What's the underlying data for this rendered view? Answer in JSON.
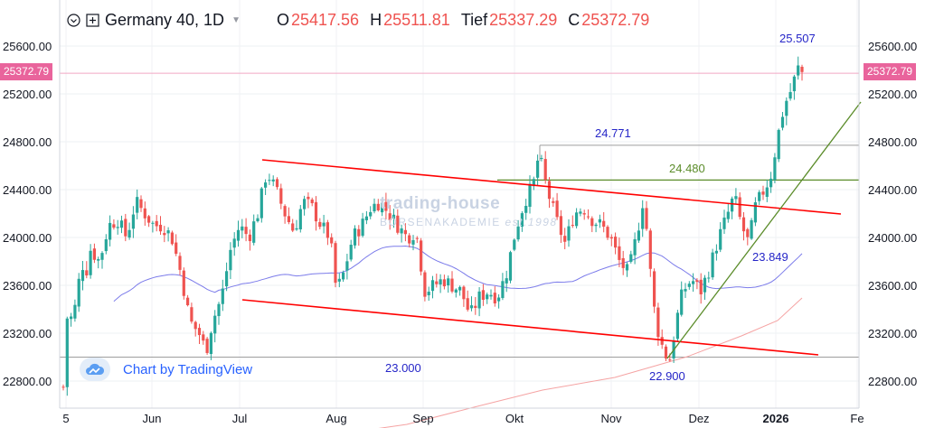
{
  "legend": {
    "symbol": "Germany 40, 1D",
    "open_label": "O",
    "open": "25417.56",
    "high_label": "H",
    "high": "25511.81",
    "low_label": "Tief",
    "low": "25337.29",
    "close_label": "C",
    "close": "25372.79",
    "eye_icon": "eye-icon",
    "add_icon": "plus-square-icon"
  },
  "watermark": {
    "line1": "trading-house",
    "line2": "BÖRSENAKADEMIE",
    "line3": "est.1998"
  },
  "branding": {
    "text": "Chart by TradingView",
    "icon": "tradingview-cloud-icon"
  },
  "current_price": "25372.79",
  "colors": {
    "up": "#26a69a",
    "down": "#ef5350",
    "channel": "#ff0000",
    "trend": "#5b8c2a",
    "ma_fast": "#7b7bea",
    "ma_slow": "#f5a3a3",
    "tag": "#e9649c",
    "level_text": "#2626c8"
  },
  "chart_data": {
    "type": "candlestick",
    "title": "Germany 40, 1D",
    "ylim": [
      22650,
      25750
    ],
    "y_ticks": [
      "22800.00",
      "23200.00",
      "23600.00",
      "24000.00",
      "24400.00",
      "24800.00",
      "25200.00",
      "25600.00"
    ],
    "x_ticks": [
      "5",
      "Jun",
      "Jul",
      "Aug",
      "Sep",
      "Okt",
      "Nov",
      "Dez",
      "2026",
      "Fe"
    ],
    "annotations": [
      "25.507",
      "24.771",
      "24.480",
      "23.849",
      "23.000",
      "22.900"
    ],
    "price_anchors": [
      [
        70,
        22750
      ],
      [
        72,
        23100
      ],
      [
        75,
        23400
      ],
      [
        80,
        23300
      ],
      [
        85,
        23500
      ],
      [
        90,
        23800
      ],
      [
        95,
        23700
      ],
      [
        100,
        23900
      ],
      [
        110,
        23800
      ],
      [
        120,
        24100
      ],
      [
        130,
        24150
      ],
      [
        140,
        24000
      ],
      [
        150,
        24300
      ],
      [
        160,
        24200
      ],
      [
        170,
        24100
      ],
      [
        180,
        24100
      ],
      [
        190,
        24000
      ],
      [
        200,
        23700
      ],
      [
        210,
        23300
      ],
      [
        220,
        23200
      ],
      [
        228,
        23050
      ],
      [
        235,
        23300
      ],
      [
        245,
        23500
      ],
      [
        255,
        23900
      ],
      [
        265,
        24100
      ],
      [
        275,
        24000
      ],
      [
        285,
        24200
      ],
      [
        295,
        24550
      ],
      [
        305,
        24400
      ],
      [
        315,
        24200
      ],
      [
        325,
        24050
      ],
      [
        335,
        24300
      ],
      [
        345,
        24250
      ],
      [
        355,
        24100
      ],
      [
        365,
        24000
      ],
      [
        372,
        23550
      ],
      [
        380,
        23700
      ],
      [
        390,
        24000
      ],
      [
        400,
        24100
      ],
      [
        410,
        24250
      ],
      [
        420,
        24300
      ],
      [
        430,
        24200
      ],
      [
        440,
        24100
      ],
      [
        450,
        24000
      ],
      [
        460,
        24050
      ],
      [
        470,
        23550
      ],
      [
        480,
        23600
      ],
      [
        490,
        23650
      ],
      [
        500,
        23600
      ],
      [
        510,
        23550
      ],
      [
        520,
        23350
      ],
      [
        530,
        23500
      ],
      [
        540,
        23550
      ],
      [
        550,
        23500
      ],
      [
        560,
        23700
      ],
      [
        570,
        24050
      ],
      [
        580,
        24300
      ],
      [
        590,
        24450
      ],
      [
        596,
        24700
      ],
      [
        605,
        24400
      ],
      [
        615,
        24150
      ],
      [
        625,
        23950
      ],
      [
        635,
        24200
      ],
      [
        645,
        24250
      ],
      [
        655,
        24150
      ],
      [
        665,
        24100
      ],
      [
        675,
        24000
      ],
      [
        685,
        23800
      ],
      [
        695,
        23700
      ],
      [
        705,
        24050
      ],
      [
        712,
        24350
      ],
      [
        718,
        23800
      ],
      [
        725,
        23300
      ],
      [
        732,
        23100
      ],
      [
        740,
        22950
      ],
      [
        748,
        23300
      ],
      [
        755,
        23550
      ],
      [
        765,
        23650
      ],
      [
        775,
        23550
      ],
      [
        785,
        23750
      ],
      [
        795,
        24000
      ],
      [
        805,
        24200
      ],
      [
        812,
        24350
      ],
      [
        820,
        24100
      ],
      [
        828,
        23950
      ],
      [
        835,
        24250
      ],
      [
        845,
        24400
      ],
      [
        852,
        24500
      ],
      [
        858,
        24750
      ],
      [
        864,
        25000
      ],
      [
        870,
        25150
      ],
      [
        876,
        25250
      ],
      [
        882,
        25420
      ],
      [
        887,
        25380
      ]
    ]
  }
}
